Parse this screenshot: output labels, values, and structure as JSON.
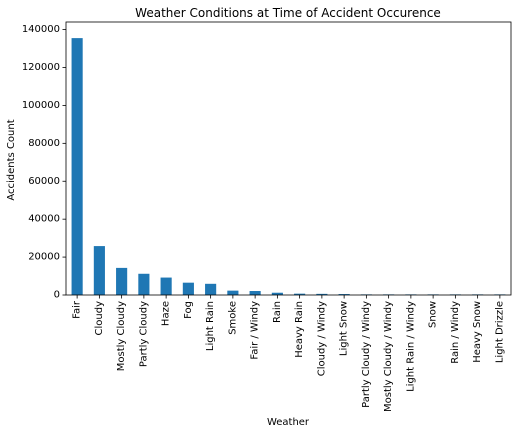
{
  "chart_data": {
    "type": "bar",
    "title": "Weather Conditions at Time of Accident Occurence",
    "xlabel": "Weather",
    "ylabel": "Accidents Count",
    "ylim": [
      0,
      144000
    ],
    "yticks": [
      0,
      20000,
      40000,
      60000,
      80000,
      100000,
      120000,
      140000
    ],
    "categories": [
      "Fair",
      "Cloudy",
      "Mostly Cloudy",
      "Partly Cloudy",
      "Haze",
      "Fog",
      "Light Rain",
      "Smoke",
      "Fair / Windy",
      "Rain",
      "Heavy Rain",
      "Cloudy / Windy",
      "Light Snow",
      "Partly Cloudy / Windy",
      "Mostly Cloudy / Windy",
      "Light Rain / Windy",
      "Snow",
      "Rain / Windy",
      "Heavy Snow",
      "Light Drizzle"
    ],
    "values": [
      135500,
      25800,
      14300,
      11200,
      9200,
      6500,
      5900,
      2300,
      2100,
      1200,
      700,
      600,
      500,
      250,
      200,
      150,
      120,
      100,
      80,
      60
    ],
    "grid": false,
    "bar_color": "#1f77b4"
  }
}
